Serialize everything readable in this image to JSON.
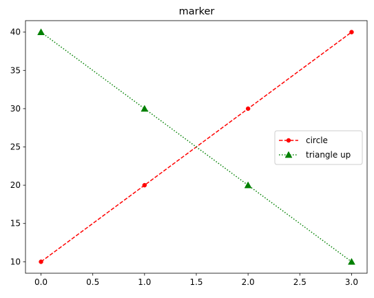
{
  "chart_data": {
    "type": "line",
    "title": "marker",
    "xlabel": "",
    "ylabel": "",
    "xlim": [
      -0.15,
      3.15
    ],
    "ylim": [
      8.5,
      41.5
    ],
    "xticks": [
      0.0,
      0.5,
      1.0,
      1.5,
      2.0,
      2.5,
      3.0
    ],
    "xtick_labels": [
      "0.0",
      "0.5",
      "1.0",
      "1.5",
      "2.0",
      "2.5",
      "3.0"
    ],
    "yticks": [
      10,
      15,
      20,
      25,
      30,
      35,
      40
    ],
    "ytick_labels": [
      "10",
      "15",
      "20",
      "25",
      "30",
      "35",
      "40"
    ],
    "grid": false,
    "legend_position": "center-right",
    "series": [
      {
        "name": "circle",
        "x": [
          0,
          1,
          2,
          3
        ],
        "y": [
          10,
          20,
          30,
          40
        ],
        "color": "#ff0000",
        "linestyle": "dashed",
        "marker": "circle"
      },
      {
        "name": "triangle up",
        "x": [
          0,
          1,
          2,
          3
        ],
        "y": [
          40,
          30,
          20,
          10
        ],
        "color": "#008000",
        "linestyle": "dotted",
        "marker": "triangle-up"
      }
    ]
  }
}
